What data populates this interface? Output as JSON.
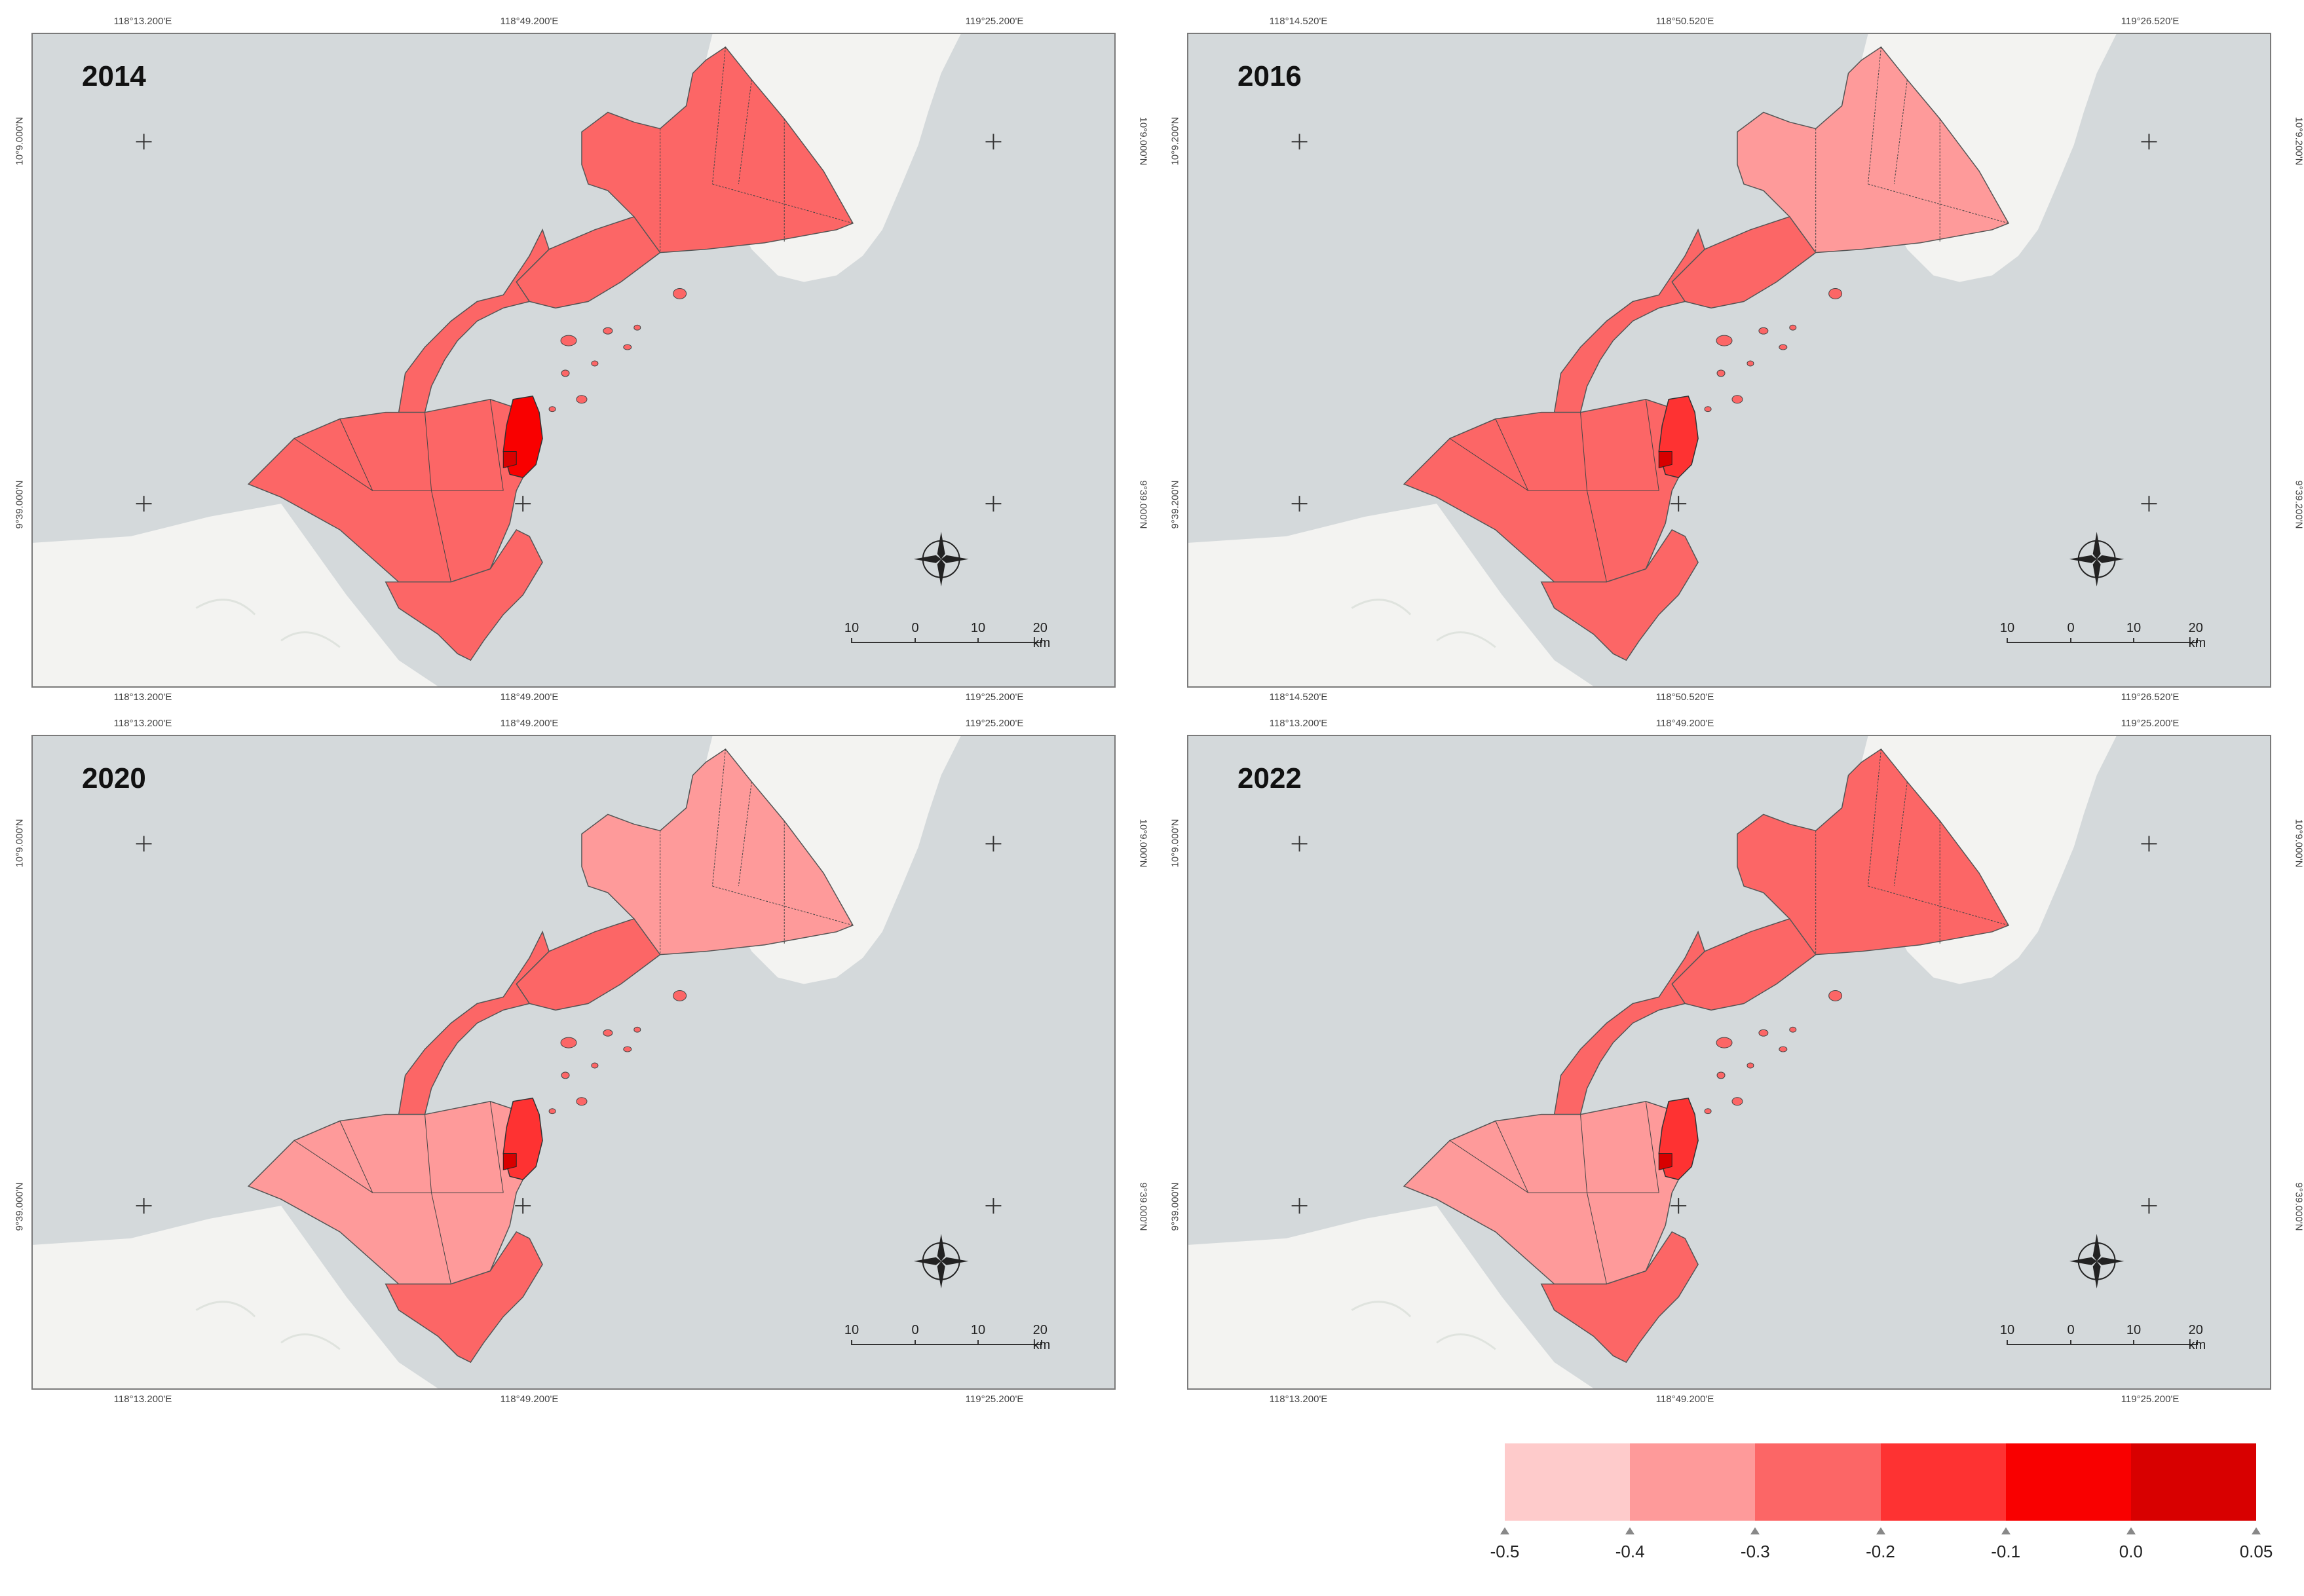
{
  "colors": {
    "sea": "#d4d9db",
    "land": "#f3f3f1",
    "c1": "#fecbcb",
    "c2": "#fe9a9a",
    "c3": "#fc6666",
    "c4": "#fe3232",
    "c5": "#f90000",
    "c6": "#d80000"
  },
  "panels": [
    {
      "year": "2014",
      "top_ticks": [
        "118°13.200'E",
        "118°49.200'E",
        "119°25.200'E"
      ],
      "bottom_ticks": [
        "118°13.200'E",
        "118°49.200'E",
        "119°25.200'E"
      ],
      "left_ticks": [
        "10°9.000'N",
        "9°39.000'N"
      ],
      "right_ticks": [
        "10°9.000'N",
        "9°39.000'N"
      ],
      "scale": [
        "10",
        "0",
        "10",
        "20 km"
      ],
      "fills": {
        "ne": "c3",
        "mid": "c3",
        "sw": "c3",
        "s": "c3",
        "bay": "c5"
      }
    },
    {
      "year": "2016",
      "top_ticks": [
        "118°14.520'E",
        "118°50.520'E",
        "119°26.520'E"
      ],
      "bottom_ticks": [
        "118°14.520'E",
        "118°50.520'E",
        "119°26.520'E"
      ],
      "left_ticks": [
        "10°9.200'N",
        "9°39.200'N"
      ],
      "right_ticks": [
        "10°9.200'N",
        "9°39.200'N"
      ],
      "scale": [
        "10",
        "0",
        "10",
        "20 km"
      ],
      "fills": {
        "ne": "c2",
        "mid": "c3",
        "sw": "c3",
        "s": "c3",
        "bay": "c4"
      }
    },
    {
      "year": "2020",
      "top_ticks": [
        "118°13.200'E",
        "118°49.200'E",
        "119°25.200'E"
      ],
      "bottom_ticks": [
        "118°13.200'E",
        "118°49.200'E",
        "119°25.200'E"
      ],
      "left_ticks": [
        "10°9.000'N",
        "9°39.000'N"
      ],
      "right_ticks": [
        "10°9.000'N",
        "9°39.000'N"
      ],
      "scale": [
        "10",
        "0",
        "10",
        "20 km"
      ],
      "fills": {
        "ne": "c2",
        "mid": "c3",
        "sw": "c2",
        "s": "c3",
        "bay": "c4"
      }
    },
    {
      "year": "2022",
      "top_ticks": [
        "118°13.200'E",
        "118°49.200'E",
        "119°25.200'E"
      ],
      "bottom_ticks": [
        "118°13.200'E",
        "118°49.200'E",
        "119°25.200'E"
      ],
      "left_ticks": [
        "10°9.000'N",
        "9°39.000'N"
      ],
      "right_ticks": [
        "10°9.000'N",
        "9°39.000'N"
      ],
      "scale": [
        "10",
        "0",
        "10",
        "20 km"
      ],
      "fills": {
        "ne": "c3",
        "mid": "c3",
        "sw": "c2",
        "s": "c3",
        "bay": "c4"
      }
    }
  ],
  "legend": {
    "bins": [
      "c1",
      "c2",
      "c3",
      "c4",
      "c5",
      "c6"
    ],
    "labels": [
      "-0.5",
      "-0.4",
      "-0.3",
      "-0.2",
      "-0.1",
      "0.0",
      "0.05"
    ]
  }
}
